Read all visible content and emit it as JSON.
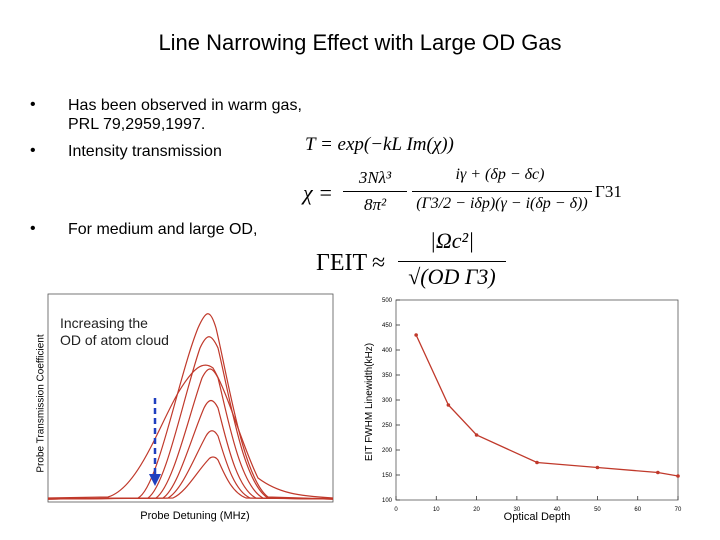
{
  "slide": {
    "title": "Line Narrowing Effect with Large OD Gas",
    "bullets": [
      {
        "marker": "•",
        "lines": [
          "Has been observed in warm gas,",
          "PRL 79,2959,1997."
        ]
      },
      {
        "marker": "•",
        "lines": [
          "Intensity transmission"
        ]
      },
      {
        "marker": "•",
        "lines": [
          "For medium and large OD,"
        ]
      }
    ]
  },
  "equations": {
    "transmission": "T = exp(−kL Im(χ))",
    "chi_lhs": "χ =",
    "chi_num1": "3Nλ³",
    "chi_den1": "8π²",
    "chi_num2": "iγ + (δp − δc)",
    "chi_den2": "(Γ3/2 − iδp)(γ − i(δp − δ))",
    "chi_factor": "Γ31",
    "eit_lhs": "ΓEIT",
    "eit_approx": "≈",
    "eit_num": "|Ωc²|",
    "eit_den": "√(OD Γ3)"
  },
  "left_figure": {
    "annotation": [
      "Increasing the",
      "OD of atom cloud"
    ],
    "ylabel": "Probe Transmission Coefficient",
    "xlabel": "Probe Detuning (MHz)"
  },
  "chart_data": {
    "type": "line",
    "title": "",
    "xlabel": "Optical Depth",
    "ylabel": "EIT FWHM Linewidth(kHz)",
    "xlim": [
      0,
      70
    ],
    "ylim": [
      100,
      500
    ],
    "x_ticks": [
      "0",
      "10",
      "20",
      "30",
      "40",
      "50",
      "60",
      "70"
    ],
    "y_ticks": [
      "100",
      "150",
      "200",
      "250",
      "300",
      "350",
      "400",
      "450",
      "500"
    ],
    "x": [
      5,
      13,
      20,
      35,
      50,
      65,
      70
    ],
    "series": [
      {
        "values": [
          430,
          290,
          230,
          175,
          165,
          155,
          148
        ]
      }
    ],
    "colors": {
      "line": "#c0392b",
      "axes": "#333333"
    }
  }
}
